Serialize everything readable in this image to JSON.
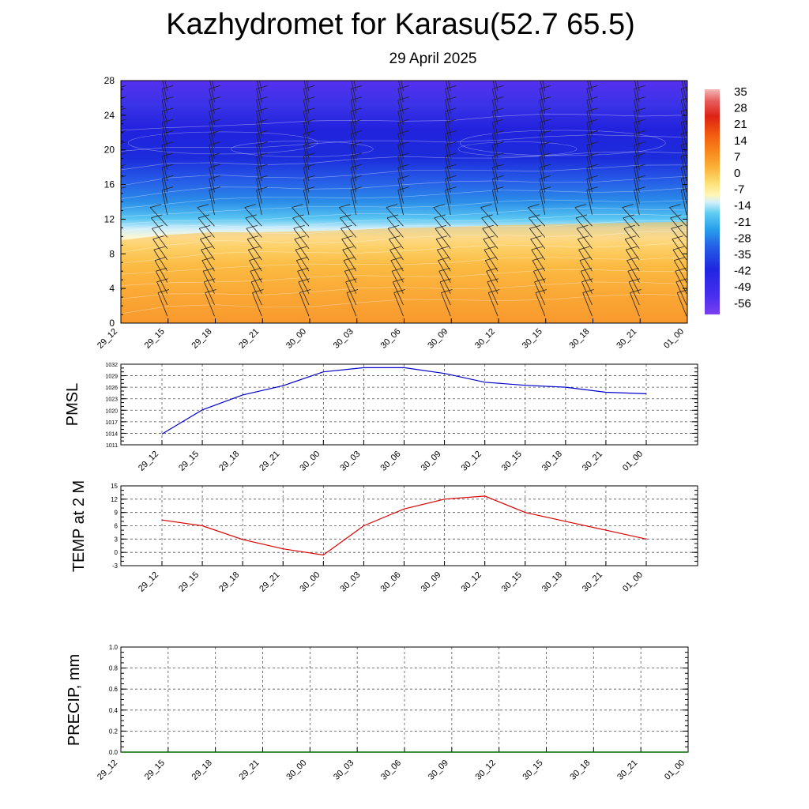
{
  "header": {
    "title": "Kazhydromet for Karasu(52.7 65.5)",
    "date": "29 April 2025"
  },
  "colors": {
    "pmsl_line": "#0000cc",
    "temp_line": "#dd0000",
    "precip_line": "#006600",
    "grid": "#555555",
    "barb": "#222222"
  },
  "chart_data": [
    {
      "type": "heatmap",
      "name": "temperature-cross-section",
      "x": [
        "29_12",
        "29_15",
        "29_18",
        "29_21",
        "30_00",
        "30_03",
        "30_06",
        "30_09",
        "30_12",
        "30_15",
        "30_18",
        "30_21",
        "01_00"
      ],
      "ylim": [
        0,
        28
      ],
      "yticks": [
        0,
        4,
        8,
        12,
        16,
        20,
        24,
        28
      ],
      "colorbar": {
        "labels": [
          "35",
          "28",
          "21",
          "14",
          "7",
          "0",
          "-7",
          "-14",
          "-21",
          "-28",
          "-35",
          "-42",
          "-49",
          "-56"
        ],
        "range": [
          -60,
          38
        ]
      },
      "freezing_level": [
        9.6,
        10.2,
        10.5,
        10.5,
        10.6,
        10.8,
        11.0,
        11.1,
        11.3,
        11.4,
        11.5,
        11.6,
        11.7
      ],
      "cold_core_level": 20.5
    },
    {
      "type": "line",
      "name": "pmsl",
      "ylabel": "PMSL",
      "x": [
        "29_12",
        "29_15",
        "29_18",
        "29_21",
        "30_00",
        "30_03",
        "30_06",
        "30_09",
        "30_12",
        "30_15",
        "30_18",
        "30_21",
        "01_00"
      ],
      "ylim": [
        1011,
        1032
      ],
      "yticks": [
        1011,
        1014,
        1017,
        1020,
        1023,
        1026,
        1029,
        1032
      ],
      "series": [
        {
          "values": [
            1013.8,
            1020.1,
            1024.0,
            1026.4,
            1030.0,
            1031.1,
            1031.1,
            1029.6,
            1027.3,
            1026.5,
            1026.0,
            1024.7,
            1024.3
          ]
        }
      ]
    },
    {
      "type": "line",
      "name": "temp2m",
      "ylabel": "TEMP at 2 M",
      "x": [
        "29_12",
        "29_15",
        "29_18",
        "29_21",
        "30_00",
        "30_03",
        "30_06",
        "30_09",
        "30_12",
        "30_15",
        "30_18",
        "30_21",
        "01_00"
      ],
      "ylim": [
        -3,
        15
      ],
      "yticks": [
        -3,
        0,
        3,
        6,
        9,
        12,
        15
      ],
      "series": [
        {
          "values": [
            7.3,
            6.0,
            2.9,
            0.8,
            -0.6,
            6.0,
            9.8,
            12.0,
            12.7,
            9.0,
            7.0,
            5.0,
            3.0
          ]
        }
      ]
    },
    {
      "type": "line",
      "name": "precip",
      "ylabel": "PRECIP, mm",
      "x": [
        "29_12",
        "29_15",
        "29_18",
        "29_21",
        "30_00",
        "30_03",
        "30_06",
        "30_09",
        "30_12",
        "30_15",
        "30_18",
        "30_21",
        "01_00"
      ],
      "ylim": [
        0,
        1
      ],
      "yticks": [
        "0.0",
        "0.2",
        "0.4",
        "0.6",
        "0.8",
        "1.0"
      ],
      "series": [
        {
          "values": [
            0,
            0,
            0,
            0,
            0,
            0,
            0,
            0,
            0,
            0,
            0,
            0,
            0
          ]
        }
      ]
    }
  ]
}
